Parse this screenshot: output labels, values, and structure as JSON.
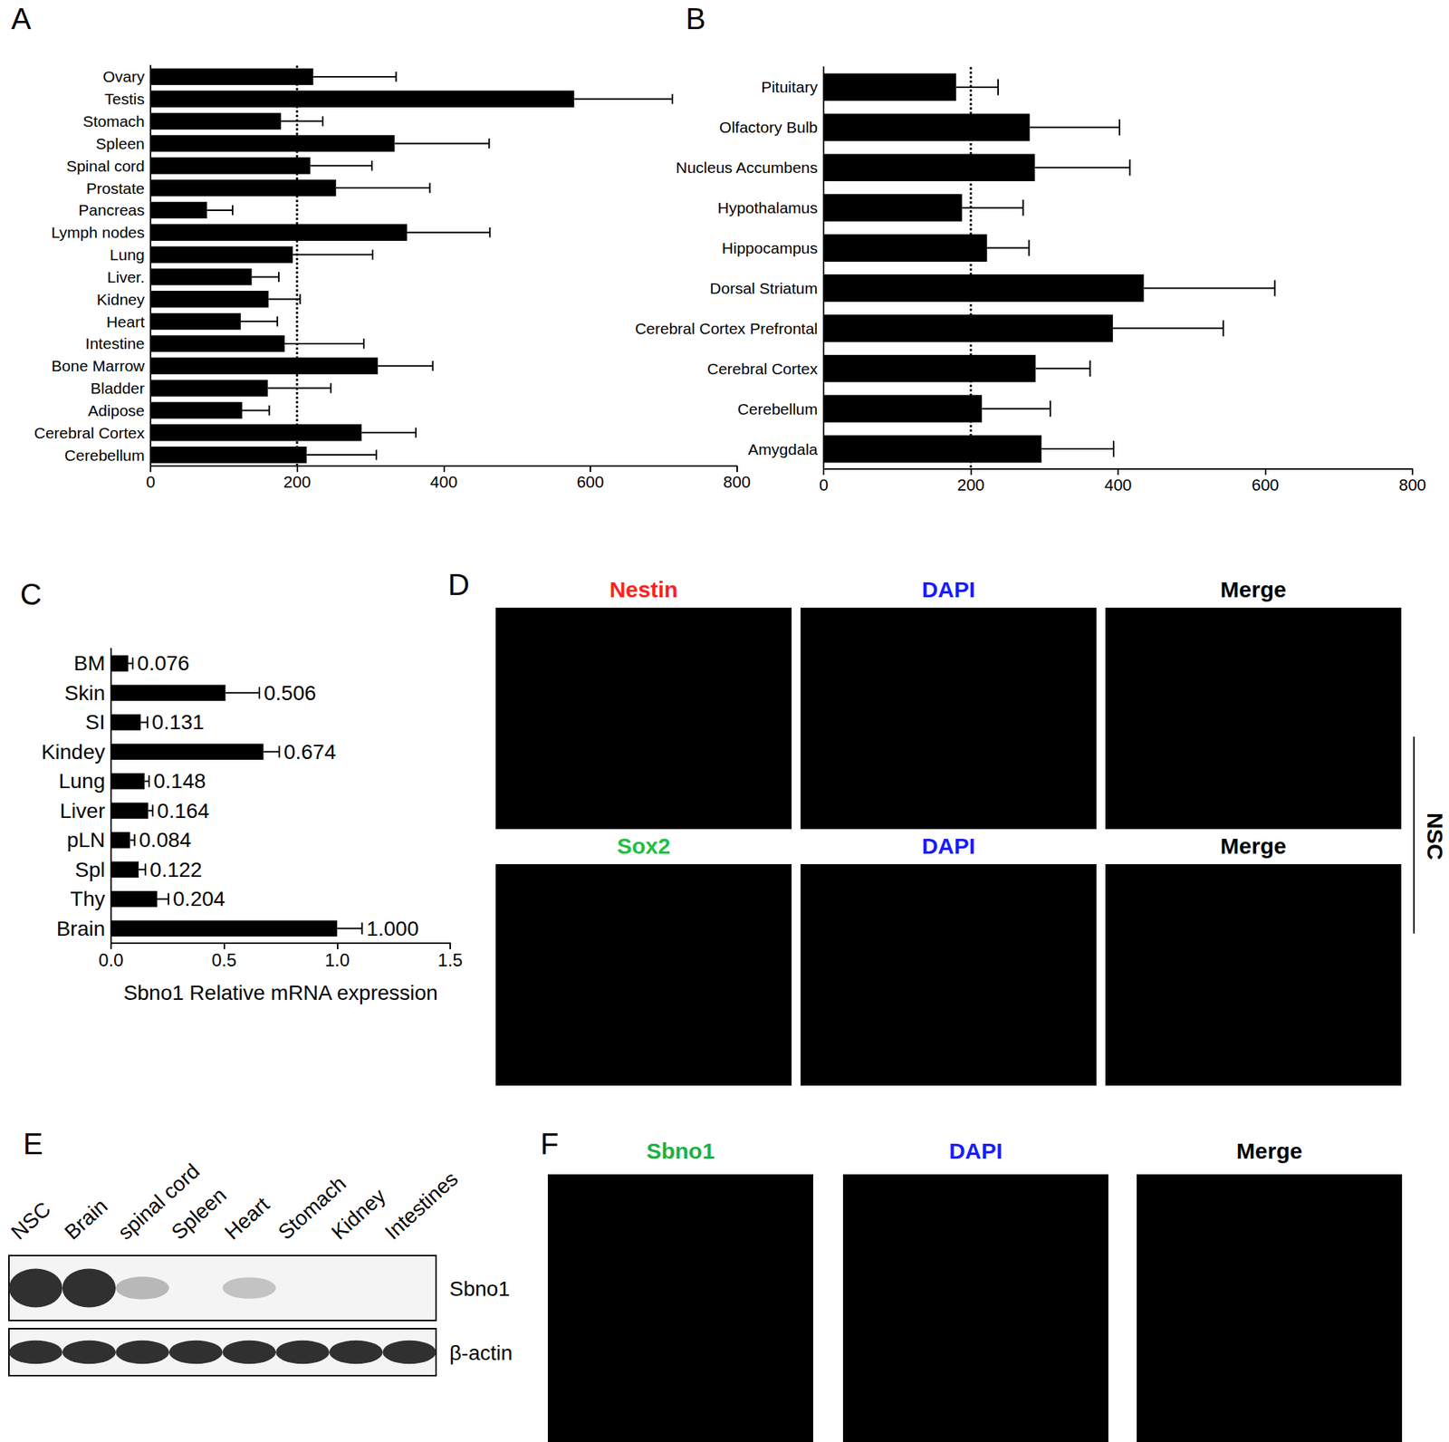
{
  "chart_data": [
    {
      "type": "bar",
      "title": "A",
      "orientation": "horizontal",
      "grid": false,
      "color": "#000000",
      "categories": [
        "Ovary",
        "Testis",
        "Stomach",
        "Spleen",
        "Spinal cord",
        "Prostate",
        "Pancreas",
        "Lymph nodes",
        "Lung",
        "Liver.",
        "Kidney",
        "Heart",
        "Intestine",
        "Bone Marrow",
        "Bladder",
        "Adipose",
        "Cerebral Cortex",
        "Cerebellum"
      ],
      "values": [
        222,
        578,
        178,
        333,
        218,
        253,
        77,
        350,
        194,
        138,
        161,
        123,
        183,
        310,
        160,
        125,
        288,
        213
      ],
      "errors": [
        113,
        134,
        57,
        129,
        84,
        128,
        35,
        113,
        109,
        37,
        43,
        50,
        108,
        75,
        86,
        37,
        74,
        95
      ],
      "reference_line": 200,
      "xlim": [
        0,
        800
      ],
      "xticks": [
        0,
        200,
        400,
        600,
        800
      ]
    },
    {
      "type": "bar",
      "title": "B",
      "orientation": "horizontal",
      "grid": false,
      "color": "#000000",
      "categories": [
        "Pituitary",
        "Olfactory Bulb",
        "Nucleus Accumbens",
        "Hypothalamus",
        "Hippocampus",
        "Dorsal Striatum",
        "Cerebral Cortex Prefrontal",
        "Cerebral Cortex",
        "Cerebellum",
        "Amygdala"
      ],
      "values": [
        180,
        280,
        287,
        188,
        222,
        435,
        393,
        288,
        215,
        296
      ],
      "errors": [
        57,
        122,
        129,
        83,
        57,
        178,
        150,
        74,
        93,
        98
      ],
      "reference_line": 200,
      "xlim": [
        0,
        800
      ],
      "xticks": [
        0,
        200,
        400,
        600,
        800
      ]
    },
    {
      "type": "bar",
      "title": "C",
      "orientation": "horizontal",
      "grid": false,
      "color": "#000000",
      "xlabel": "Sbno1 Relative mRNA expression",
      "categories": [
        "BM",
        "Skin",
        "SI",
        "Kindey",
        "Lung",
        "Liver",
        "pLN",
        "Spl",
        "Thy",
        "Brain"
      ],
      "values": [
        0.076,
        0.506,
        0.131,
        0.674,
        0.148,
        0.164,
        0.084,
        0.122,
        0.204,
        1.0
      ],
      "errors": [
        0.02,
        0.15,
        0.03,
        0.07,
        0.02,
        0.02,
        0.02,
        0.03,
        0.05,
        0.11
      ],
      "data_labels": true,
      "value_labels": [
        "0.076",
        "0.506",
        "0.131",
        "0.674",
        "0.148",
        "0.164",
        "0.084",
        "0.122",
        "0.204",
        "1.000"
      ],
      "xlim": [
        0,
        1.5
      ],
      "xticks": [
        {
          "value": 0,
          "label": "0.0"
        },
        {
          "value": 0.5,
          "label": "0.5"
        },
        {
          "value": 1,
          "label": "1.0"
        },
        {
          "value": 1.5,
          "label": "1.5"
        }
      ]
    }
  ],
  "panels": {
    "D": {
      "title": "D",
      "side_label": "NSC",
      "rows": [
        [
          {
            "text": "Nestin",
            "color": "#ff2020"
          },
          {
            "text": "DAPI",
            "color": "#1a1aff"
          },
          {
            "text": "Merge",
            "color": "#000000"
          }
        ],
        [
          {
            "text": "Sox2",
            "color": "#1fc040"
          },
          {
            "text": "DAPI",
            "color": "#1a1aff"
          },
          {
            "text": "Merge",
            "color": "#000000"
          }
        ]
      ]
    },
    "E": {
      "title": "E",
      "lanes": [
        "NSC",
        "Brain",
        "spinal cord",
        "Spleen",
        "Heart",
        "Stomach",
        "Kidney",
        "Intestines"
      ],
      "rows": [
        {
          "label": "Sbno1",
          "bands": [
            1,
            1,
            0.3,
            0,
            0.25,
            0,
            0,
            0
          ]
        },
        {
          "label": "β-actin",
          "bands": [
            1,
            1,
            1,
            1,
            1,
            1,
            1,
            1
          ]
        }
      ]
    },
    "F": {
      "title": "F",
      "headers": [
        {
          "text": "Sbno1",
          "color": "#1fb040"
        },
        {
          "text": "DAPI",
          "color": "#1a1aff"
        },
        {
          "text": "Merge",
          "color": "#000000"
        }
      ]
    }
  }
}
